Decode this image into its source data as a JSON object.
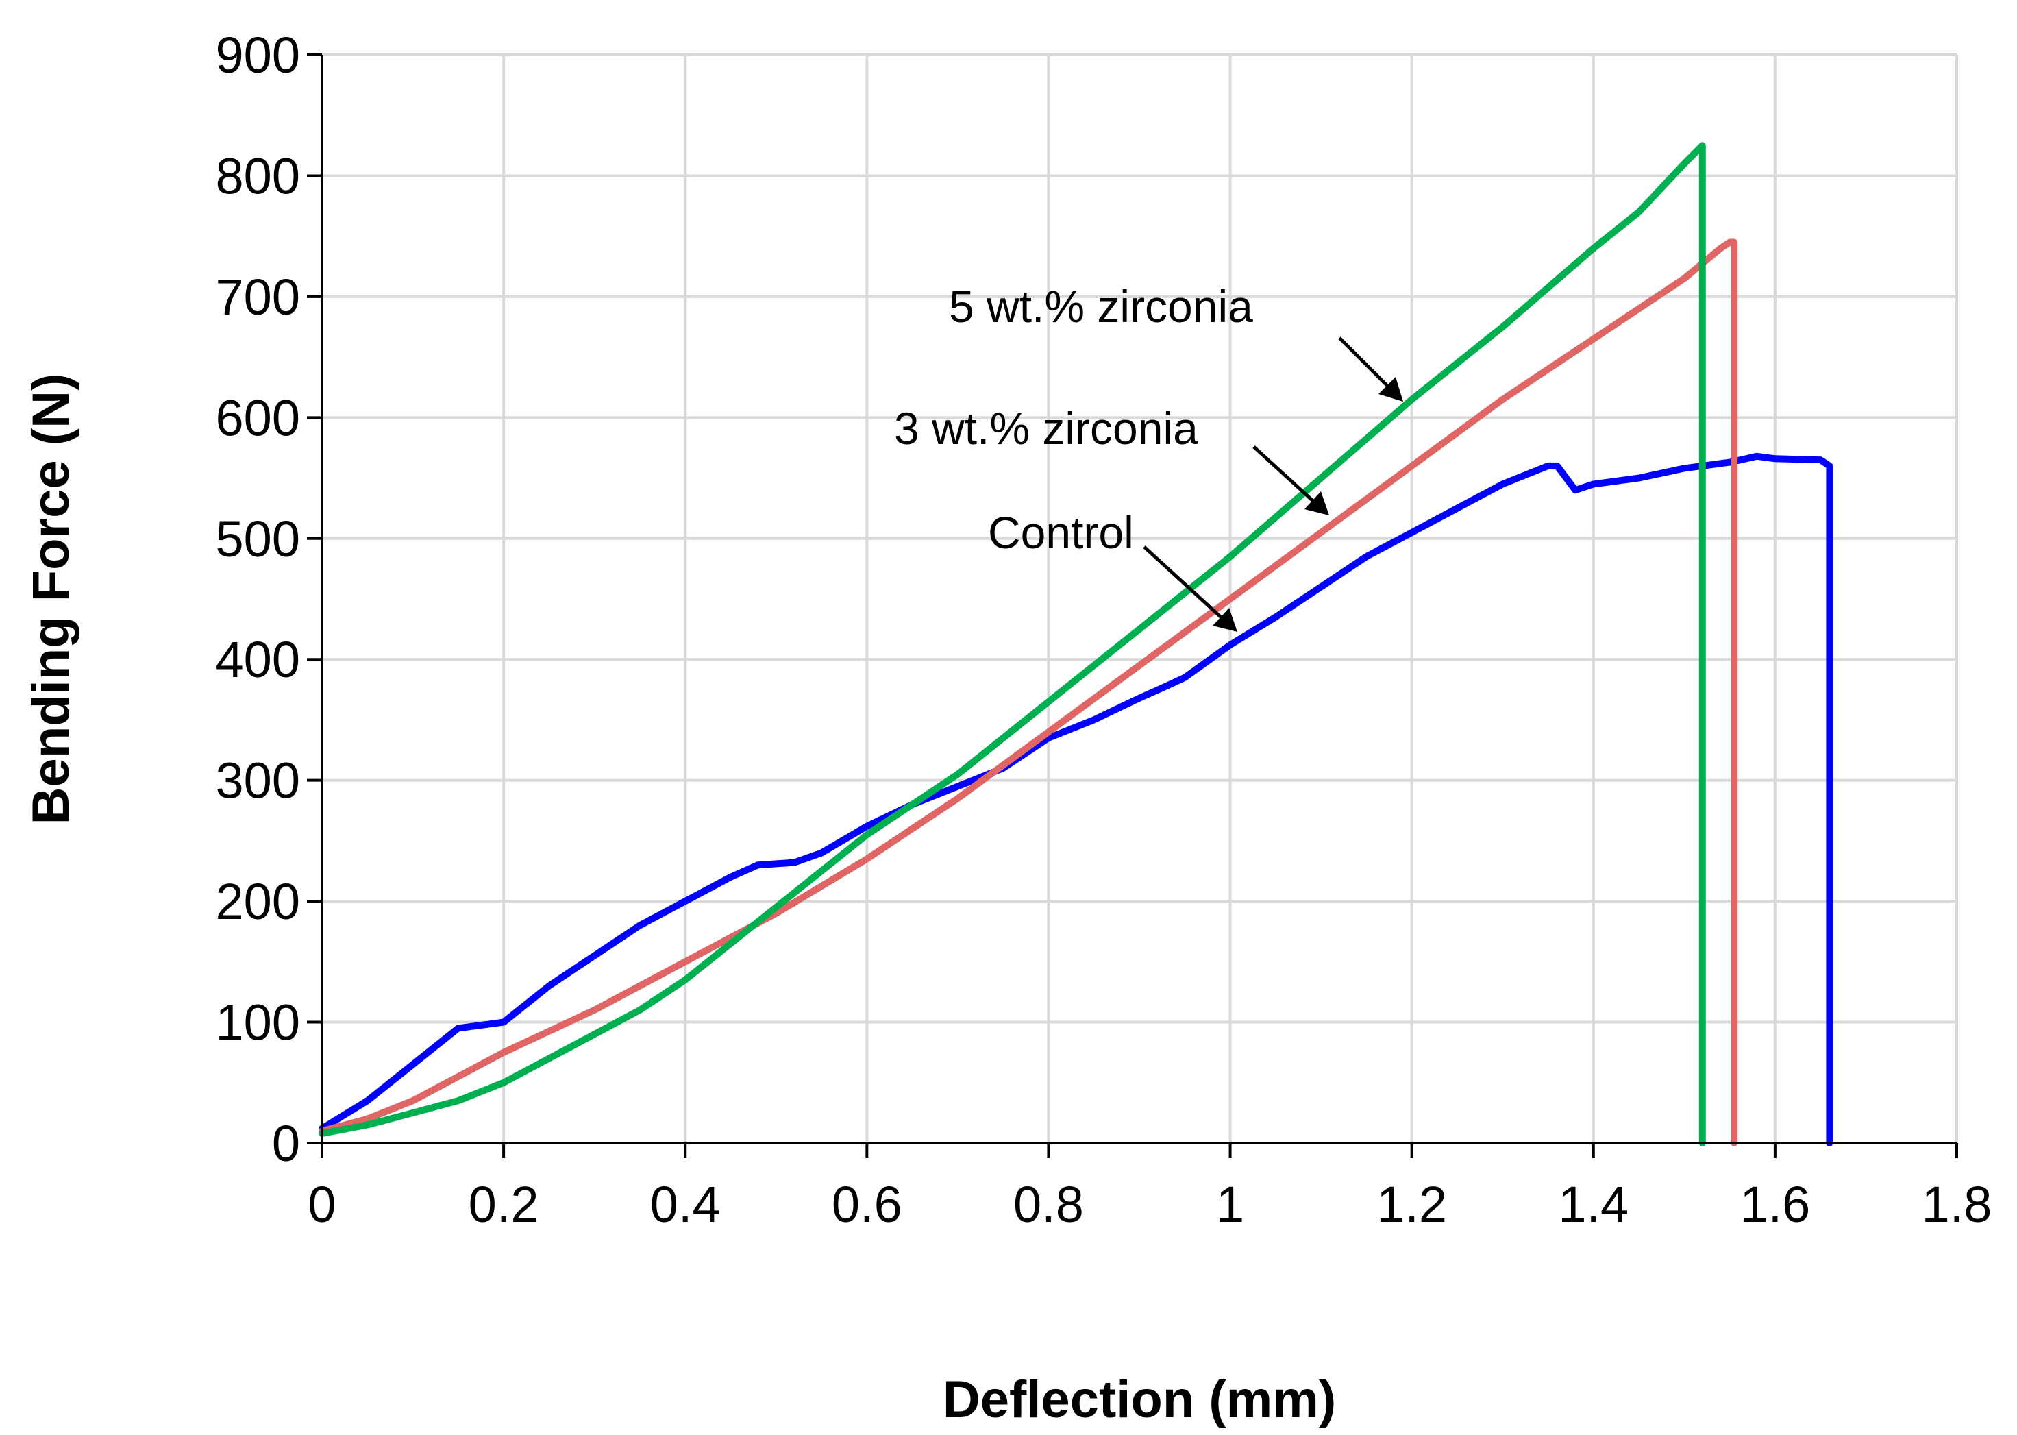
{
  "chart_data": {
    "type": "line",
    "title": "",
    "xlabel": "Deflection (mm)",
    "ylabel": "Bending Force (N)",
    "xlim": [
      0,
      1.8
    ],
    "ylim": [
      0,
      900
    ],
    "x_ticks": [
      0,
      0.2,
      0.4,
      0.6,
      0.8,
      1.0,
      1.2,
      1.4,
      1.6,
      1.8
    ],
    "x_tick_labels": [
      "0",
      "0.2",
      "0.4",
      "0.6",
      "0.8",
      "1",
      "1.2",
      "1.4",
      "1.6",
      "1.8"
    ],
    "y_ticks": [
      0,
      100,
      200,
      300,
      400,
      500,
      600,
      700,
      800,
      900
    ],
    "y_tick_labels": [
      "0",
      "100",
      "200",
      "300",
      "400",
      "500",
      "600",
      "700",
      "800",
      "900"
    ],
    "grid": true,
    "legend": "none",
    "series": [
      {
        "name": "Control",
        "color": "#0000ff",
        "x": [
          0,
          0.05,
          0.1,
          0.15,
          0.2,
          0.25,
          0.3,
          0.35,
          0.4,
          0.45,
          0.48,
          0.52,
          0.55,
          0.6,
          0.65,
          0.7,
          0.75,
          0.8,
          0.85,
          0.9,
          0.93,
          0.95,
          1.0,
          1.05,
          1.1,
          1.15,
          1.2,
          1.25,
          1.3,
          1.35,
          1.36,
          1.38,
          1.4,
          1.45,
          1.5,
          1.55,
          1.58,
          1.6,
          1.65,
          1.66,
          1.66
        ],
        "y": [
          12,
          35,
          65,
          95,
          100,
          130,
          155,
          180,
          200,
          220,
          230,
          232,
          240,
          262,
          280,
          295,
          310,
          335,
          350,
          368,
          378,
          385,
          412,
          435,
          460,
          485,
          505,
          525,
          545,
          560,
          560,
          540,
          545,
          550,
          558,
          563,
          568,
          566,
          565,
          560,
          0
        ]
      },
      {
        "name": "3 wt.% zirconia",
        "color": "#e06666",
        "annotation": "3 wt.% zirconia",
        "x": [
          0,
          0.05,
          0.1,
          0.15,
          0.2,
          0.3,
          0.4,
          0.5,
          0.6,
          0.7,
          0.8,
          0.9,
          1.0,
          1.1,
          1.2,
          1.3,
          1.4,
          1.5,
          1.54,
          1.55,
          1.555,
          1.555
        ],
        "y": [
          10,
          20,
          35,
          55,
          75,
          110,
          150,
          190,
          235,
          285,
          340,
          395,
          450,
          505,
          560,
          615,
          665,
          715,
          740,
          745,
          745,
          0
        ]
      },
      {
        "name": "5 wt.% zirconia",
        "color": "#00b050",
        "annotation": "5 wt.% zirconia",
        "x": [
          0,
          0.05,
          0.1,
          0.15,
          0.2,
          0.25,
          0.3,
          0.35,
          0.4,
          0.45,
          0.5,
          0.6,
          0.7,
          0.8,
          0.9,
          1.0,
          1.1,
          1.2,
          1.3,
          1.4,
          1.45,
          1.5,
          1.52,
          1.52
        ],
        "y": [
          8,
          15,
          25,
          35,
          50,
          70,
          90,
          110,
          135,
          165,
          195,
          255,
          305,
          365,
          425,
          485,
          550,
          615,
          675,
          740,
          770,
          810,
          825,
          0
        ]
      }
    ],
    "annotations": [
      "5 wt.% zirconia",
      "3 wt.% zirconia",
      "Control"
    ]
  }
}
